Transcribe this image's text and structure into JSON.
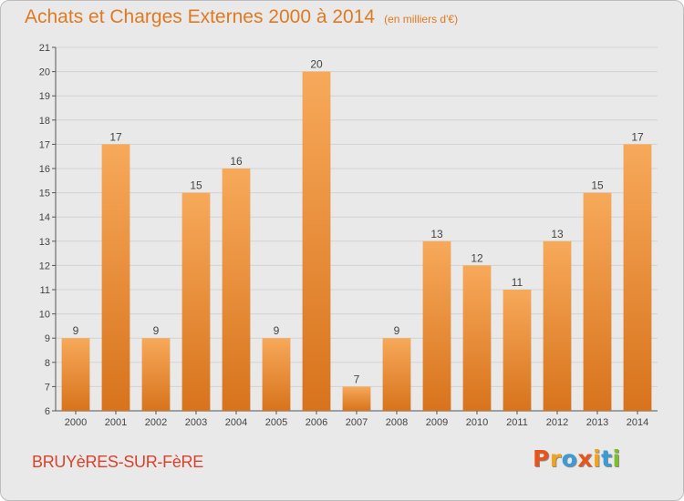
{
  "header": {
    "title": "Achats et Charges Externes 2000 à 2014",
    "subtitle": "(en milliers d'€)"
  },
  "footer": {
    "commune": "BRUYèRES-SUR-FèRE",
    "logo_text": "Proxiti"
  },
  "colors": {
    "title": "#e07a22",
    "commune": "#d9432d",
    "bar_light": "#f7a95a",
    "bar_dark": "#d8731c",
    "logo_letters": [
      "#e8541a",
      "#f3a21a",
      "#3b9bd6",
      "#e8541a",
      "#f3a21a",
      "#3b9bd6",
      "#7dbf2a"
    ]
  },
  "chart_data": {
    "type": "bar",
    "title": "Achats et Charges Externes 2000 à 2014",
    "subtitle": "(en milliers d'€)",
    "categories": [
      "2000",
      "2001",
      "2002",
      "2003",
      "2004",
      "2005",
      "2006",
      "2007",
      "2008",
      "2009",
      "2010",
      "2011",
      "2012",
      "2013",
      "2014"
    ],
    "values": [
      9,
      17,
      9,
      15,
      16,
      9,
      20,
      7,
      9,
      13,
      12,
      11,
      13,
      15,
      17
    ],
    "ylim": [
      6,
      21
    ],
    "yticks": [
      6,
      7,
      8,
      9,
      10,
      11,
      12,
      13,
      14,
      15,
      16,
      17,
      18,
      19,
      20,
      21
    ],
    "grid": "horizontal",
    "data_labels": true
  }
}
